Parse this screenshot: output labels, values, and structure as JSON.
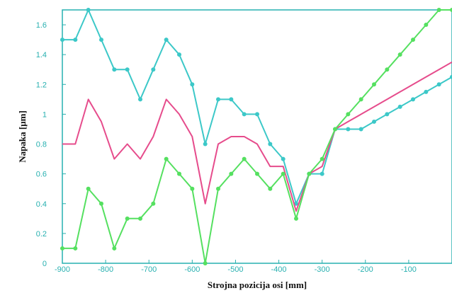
{
  "chart_data": {
    "type": "line",
    "xlabel": "Strojna pozicija osi [mm]",
    "ylabel": "Napaka [µm]",
    "xlim": [
      -900,
      0
    ],
    "ylim": [
      0,
      1.7
    ],
    "x_ticks": [
      -900,
      -800,
      -700,
      -600,
      -500,
      -400,
      -300,
      -200,
      -100
    ],
    "x_tick_labels": [
      "-900",
      "-800",
      "-700",
      "-600",
      "-500",
      "-400",
      "-300",
      "-200",
      "-100"
    ],
    "y_ticks": [
      0,
      0.2,
      0.4,
      0.6,
      0.8,
      1,
      1.2,
      1.4,
      1.6
    ],
    "y_tick_labels": [
      "0",
      "0.2",
      "0.4",
      "0.6",
      "0.8",
      "1",
      "1.2",
      "1.4",
      "1.6"
    ],
    "grid": false,
    "series": [
      {
        "color": "#3cc8c8",
        "markers": true,
        "x": [
          -900,
          -870,
          -840,
          -810,
          -780,
          -750,
          -720,
          -690,
          -660,
          -630,
          -600,
          -570,
          -540,
          -510,
          -480,
          -450,
          -420,
          -390,
          -360,
          -330,
          -300,
          -270,
          -240,
          -210,
          -180,
          -150,
          -120,
          -90,
          -60,
          -30,
          0
        ],
        "y": [
          1.5,
          1.5,
          1.7,
          1.5,
          1.3,
          1.3,
          1.1,
          1.3,
          1.5,
          1.4,
          1.2,
          0.8,
          1.1,
          1.1,
          1.0,
          1.0,
          0.8,
          0.7,
          0.4,
          0.6,
          0.6,
          0.9,
          0.9,
          0.9,
          0.95,
          1.0,
          1.05,
          1.1,
          1.15,
          1.2,
          1.25
        ]
      },
      {
        "color": "#e64c8c",
        "markers": false,
        "x": [
          -900,
          -870,
          -840,
          -810,
          -780,
          -750,
          -720,
          -690,
          -660,
          -630,
          -600,
          -570,
          -540,
          -510,
          -480,
          -450,
          -420,
          -390,
          -360,
          -330,
          -300,
          -270,
          -240,
          -210,
          -180,
          -150,
          -120,
          -90,
          -60,
          -30,
          0
        ],
        "y": [
          0.8,
          0.8,
          1.1,
          0.95,
          0.7,
          0.8,
          0.7,
          0.85,
          1.1,
          1.0,
          0.85,
          0.4,
          0.8,
          0.85,
          0.85,
          0.8,
          0.65,
          0.65,
          0.35,
          0.6,
          0.65,
          0.9,
          0.95,
          1.0,
          1.05,
          1.1,
          1.15,
          1.2,
          1.25,
          1.3,
          1.35
        ]
      },
      {
        "color": "#55e060",
        "markers": true,
        "x": [
          -900,
          -870,
          -840,
          -810,
          -780,
          -750,
          -720,
          -690,
          -660,
          -630,
          -600,
          -570,
          -540,
          -510,
          -480,
          -450,
          -420,
          -390,
          -360,
          -330,
          -300,
          -270,
          -240,
          -210,
          -180,
          -150,
          -120,
          -90,
          -60,
          -30,
          0
        ],
        "y": [
          0.1,
          0.1,
          0.5,
          0.4,
          0.1,
          0.3,
          0.3,
          0.4,
          0.7,
          0.6,
          0.5,
          0.0,
          0.5,
          0.6,
          0.7,
          0.6,
          0.5,
          0.6,
          0.3,
          0.6,
          0.7,
          0.9,
          1.0,
          1.1,
          1.2,
          1.3,
          1.4,
          1.5,
          1.6,
          1.7,
          1.7
        ]
      }
    ]
  }
}
